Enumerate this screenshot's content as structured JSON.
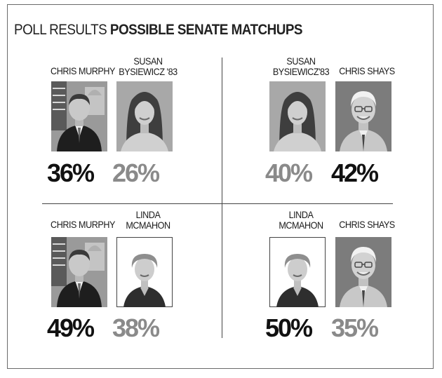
{
  "title": {
    "light": "POLL RESULTS",
    "bold": "POSSIBLE SENATE MATCHUPS"
  },
  "colors": {
    "winner": "#111111",
    "loser": "#8a8a8a"
  },
  "matchups": [
    {
      "left": {
        "name": "CHRIS MURPHY",
        "photo": "murphy-portrait",
        "pct": "36%"
      },
      "right": {
        "name_lines": [
          "SUSAN",
          "BYSIEWICZ '83"
        ],
        "photo": "bysiewicz-portrait",
        "pct": "26%"
      }
    },
    {
      "left": {
        "name_lines": [
          "SUSAN",
          "BYSIEWICZ'83"
        ],
        "photo": "bysiewicz-portrait",
        "pct": "40%"
      },
      "right": {
        "name": "CHRIS SHAYS",
        "photo": "shays-portrait",
        "pct": "42%"
      }
    },
    {
      "left": {
        "name": "CHRIS MURPHY",
        "photo": "murphy-portrait",
        "pct": "49%"
      },
      "right": {
        "name_lines": [
          "LINDA",
          "MCMAHON"
        ],
        "photo": "mcmahon-portrait",
        "pct": "38%"
      }
    },
    {
      "left": {
        "name_lines": [
          "LINDA",
          "MCMAHON"
        ],
        "photo": "mcmahon-portrait",
        "pct": "50%"
      },
      "right": {
        "name": "CHRIS SHAYS",
        "photo": "shays-portrait",
        "pct": "35%"
      }
    }
  ],
  "chart_data": {
    "type": "table",
    "title": "POLL RESULTS POSSIBLE SENATE MATCHUPS",
    "matchups": [
      {
        "candidates": [
          "CHRIS MURPHY",
          "SUSAN BYSIEWICZ '83"
        ],
        "values": [
          36,
          26
        ]
      },
      {
        "candidates": [
          "SUSAN BYSIEWICZ'83",
          "CHRIS SHAYS"
        ],
        "values": [
          40,
          42
        ]
      },
      {
        "candidates": [
          "CHRIS MURPHY",
          "LINDA MCMAHON"
        ],
        "values": [
          49,
          38
        ]
      },
      {
        "candidates": [
          "LINDA MCMAHON",
          "CHRIS SHAYS"
        ],
        "values": [
          50,
          35
        ]
      }
    ]
  }
}
